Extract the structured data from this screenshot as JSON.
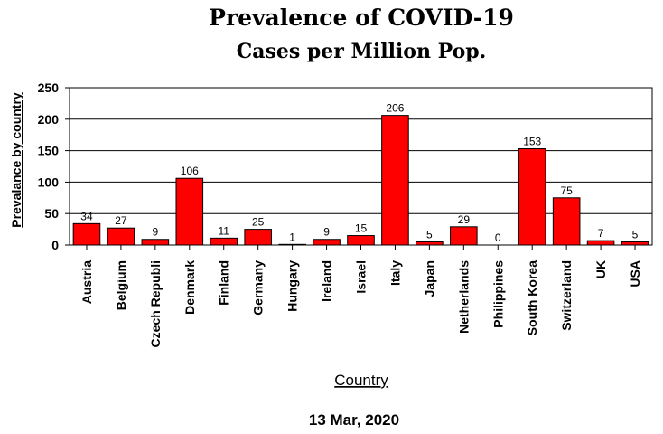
{
  "chart_data": {
    "type": "bar",
    "title": "Prevalence of COVID-19",
    "subtitle": "Cases per Million Pop.",
    "xlabel": "Country",
    "ylabel": "Prevalance by country",
    "footer": "13 Mar, 2020",
    "categories": [
      "Austria",
      "Belgium",
      "Czech Republi",
      "Denmark",
      "Finland",
      "Germany",
      "Hungary",
      "Ireland",
      "Israel",
      "Italy",
      "Japan",
      "Netherlands",
      "Philippines",
      "South Korea",
      "Switzerland",
      "UK",
      "USA"
    ],
    "values": [
      34,
      27,
      9,
      106,
      11,
      25,
      1,
      9,
      15,
      206,
      5,
      29,
      0,
      153,
      75,
      7,
      5
    ],
    "ylim": [
      0,
      250
    ],
    "yticks": [
      0,
      50,
      100,
      150,
      200,
      250
    ],
    "grid": true,
    "bar_color": "#ff0000",
    "legend": "none"
  }
}
